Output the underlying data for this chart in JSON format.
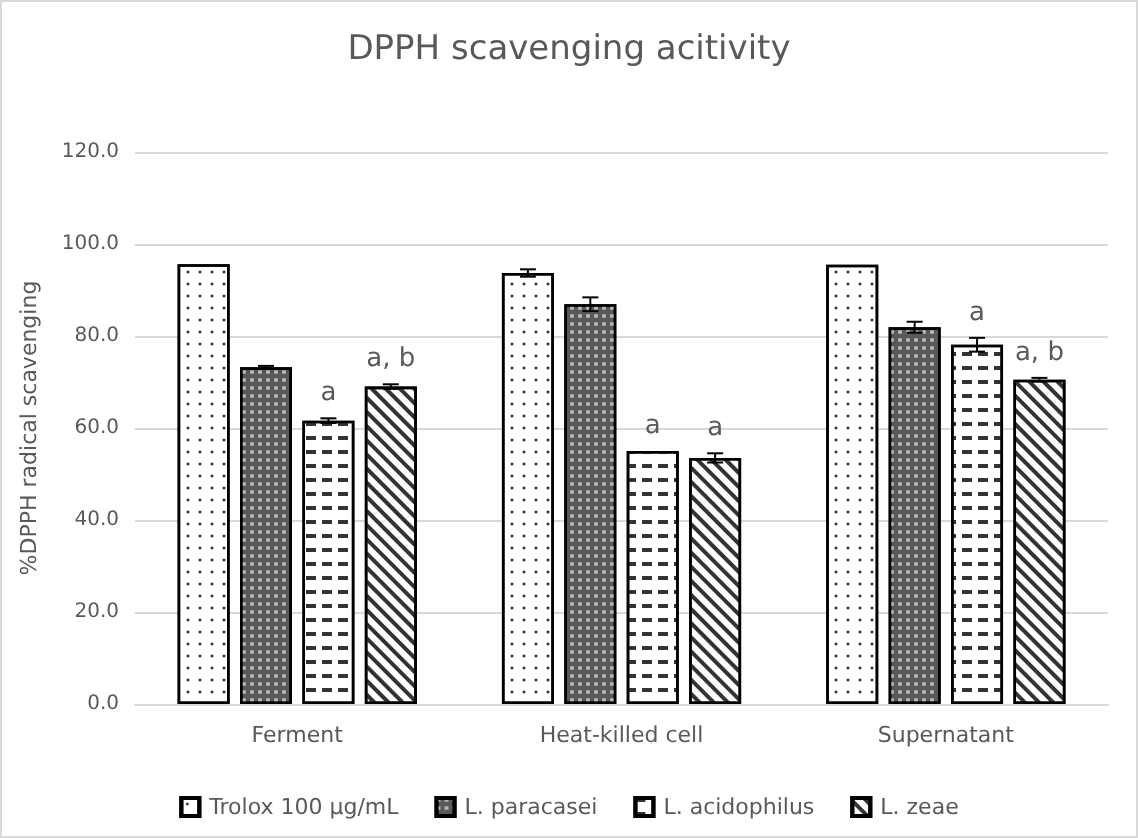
{
  "chart_data": {
    "type": "bar",
    "title": "DPPH scavenging acitivity",
    "ylabel": "%DPPH radical scavenging",
    "categories": [
      "Ferment",
      "Heat-killed cell",
      "Supernatant"
    ],
    "series": [
      {
        "name": "Trolox 100 µg/mL",
        "color": "#ffffff",
        "values": [
          95.6,
          93.7,
          95.5
        ],
        "errors": [
          null,
          0.8,
          null
        ]
      },
      {
        "name": "L. paracasei",
        "color": "#595959",
        "values": [
          73.2,
          86.9,
          81.9
        ],
        "errors": [
          0.3,
          1.5,
          1.2
        ]
      },
      {
        "name": "L. acidophilus",
        "color": "#ffffff",
        "values": [
          61.6,
          55.0,
          78.1
        ],
        "errors": [
          0.5,
          null,
          1.5
        ],
        "value_labels": [
          "a",
          "a",
          "a"
        ]
      },
      {
        "name": "L. zeae",
        "color": "#ffffff",
        "values": [
          69.0,
          53.5,
          70.5
        ],
        "errors": [
          0.5,
          1.0,
          0.4
        ],
        "value_labels": [
          "a, b",
          "a",
          "a, b"
        ]
      }
    ],
    "ylim": [
      0,
      120
    ],
    "yticks": [
      {
        "value": 0,
        "label": "0.0"
      },
      {
        "value": 20,
        "label": "20.0"
      },
      {
        "value": 40,
        "label": "40.0"
      },
      {
        "value": 60,
        "label": "60.0"
      },
      {
        "value": 80,
        "label": "80.0"
      },
      {
        "value": 100,
        "label": "100.0"
      },
      {
        "value": 120,
        "label": "120.0"
      }
    ],
    "grid": "y",
    "legend": "bottom"
  }
}
